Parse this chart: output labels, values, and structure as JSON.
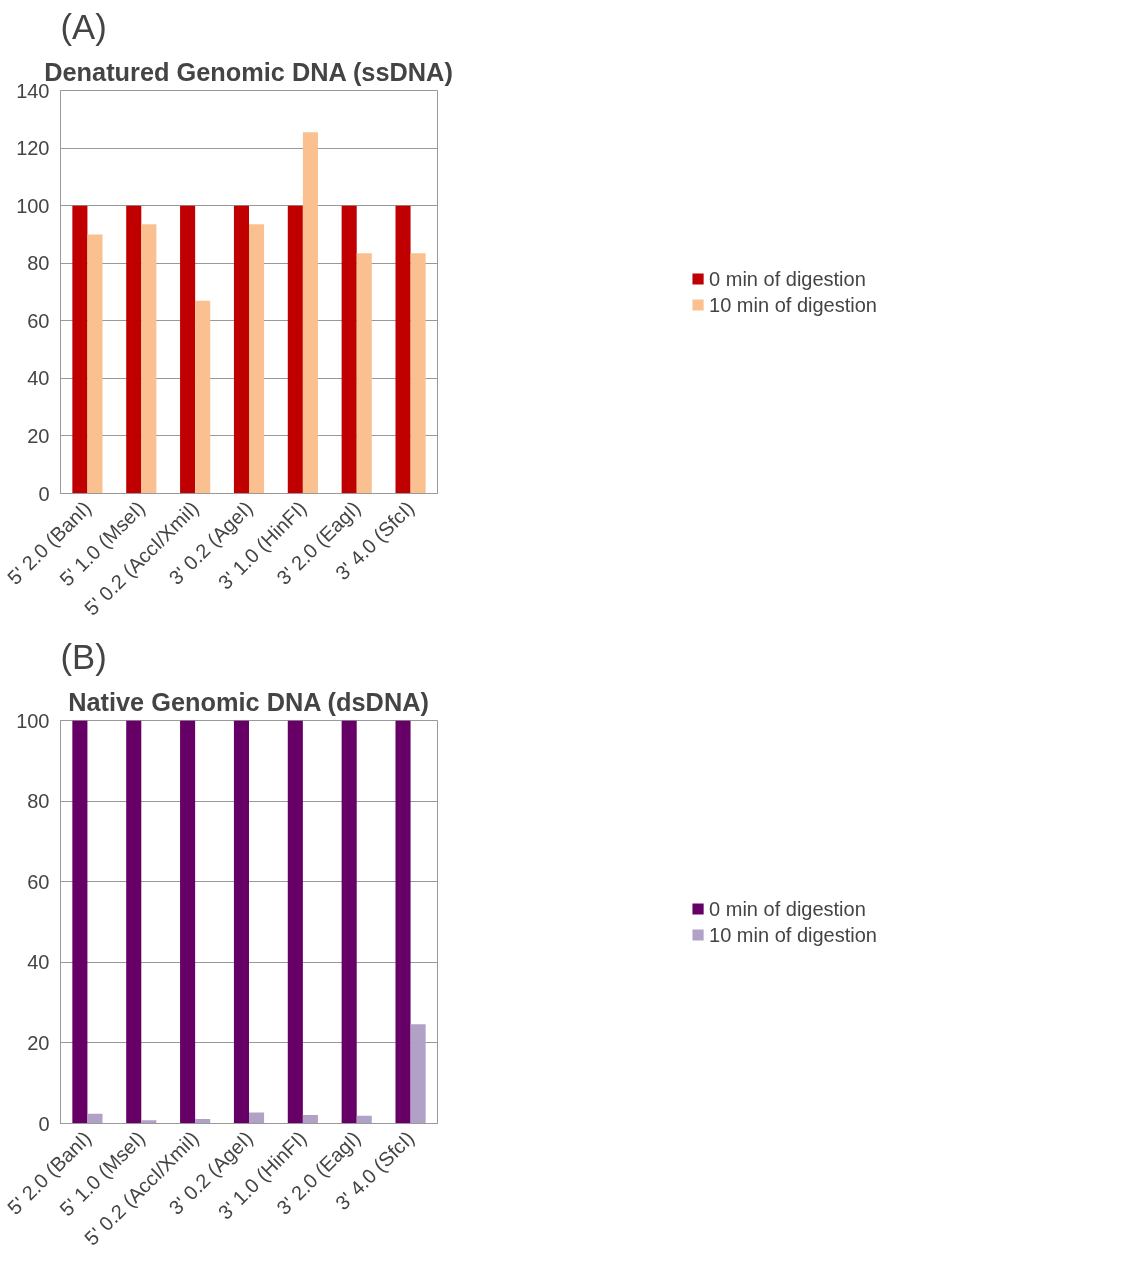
{
  "chart_data": [
    {
      "type": "bar",
      "title": "Denatured Genomic DNA (ssDNA)",
      "annotations": [
        "(A)"
      ],
      "categories": [
        "5' 2.0 (BanI)",
        "5' 1.0 (MseI)",
        "5' 0.2 (AccI/XmiI)",
        "3' 0.2 (AgeI)",
        "3' 1.0 (HinFI)",
        "3' 2.0 (EagI)",
        "3' 4.0 (SfcI)"
      ],
      "series": [
        {
          "name": "0 min of digestion",
          "color": "#c00000",
          "values": [
            100,
            100,
            100,
            100,
            100,
            100,
            100
          ]
        },
        {
          "name": "10 min of digestion",
          "color": "#fac090",
          "values": [
            90,
            93.5,
            67,
            93.5,
            125.5,
            83.5,
            83.5
          ]
        }
      ],
      "ylim": [
        0,
        140
      ],
      "yticks": [
        0,
        20,
        40,
        60,
        80,
        100,
        120,
        140
      ],
      "grid": "y",
      "legend": "right"
    },
    {
      "type": "bar",
      "title": "Native Genomic DNA (dsDNA)",
      "annotations": [
        "(B)"
      ],
      "categories": [
        "5' 2.0 (BanI)",
        "5' 1.0 (MseI)",
        "5' 0.2 (AccI/XmiI)",
        "3' 0.2 (AgeI)",
        "3' 1.0 (HinFI)",
        "3' 2.0 (EagI)",
        "3' 4.0 (SfcI)"
      ],
      "series": [
        {
          "name": "0 min of digestion",
          "color": "#660066",
          "values": [
            100,
            100,
            100,
            100,
            100,
            100,
            100
          ]
        },
        {
          "name": "10 min of digestion",
          "color": "#b2a1c7",
          "values": [
            2.4,
            0.8,
            1.1,
            2.7,
            2.1,
            1.9,
            24.6
          ]
        }
      ],
      "ylim": [
        0,
        100
      ],
      "yticks": [
        0,
        20,
        40,
        60,
        80,
        100
      ],
      "grid": "y",
      "legend": "right"
    }
  ]
}
